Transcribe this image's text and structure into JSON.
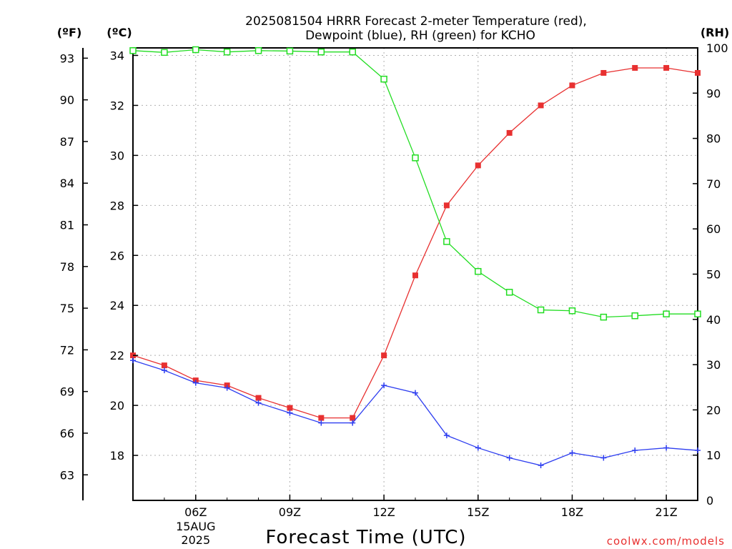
{
  "chart_data": {
    "type": "line",
    "title_line1": "2025081504 HRRR Forecast 2-meter Temperature (red),",
    "title_line2": "Dewpoint (blue), RH (green) for KCHO",
    "xlabel": "Forecast Time (UTC)",
    "credit": "coolwx.com/models",
    "unit_left_f": "(ºF)",
    "unit_left_c": "(ºC)",
    "unit_right": "(RH)",
    "x": [
      4,
      5,
      6,
      7,
      8,
      9,
      10,
      11,
      12,
      13,
      14,
      15,
      16,
      17,
      18,
      19,
      20,
      21,
      22
    ],
    "x_ticks": [
      {
        "x": 6,
        "label": "06Z",
        "sub1": "15AUG",
        "sub2": "2025"
      },
      {
        "x": 9,
        "label": "09Z"
      },
      {
        "x": 12,
        "label": "12Z"
      },
      {
        "x": 15,
        "label": "15Z"
      },
      {
        "x": 18,
        "label": "18Z"
      },
      {
        "x": 21,
        "label": "21Z"
      }
    ],
    "xlim": [
      4,
      22
    ],
    "ylim_c": [
      16.2,
      34.3
    ],
    "y_ticks_c": [
      18,
      20,
      22,
      24,
      26,
      28,
      30,
      32,
      34
    ],
    "y_ticks_f": [
      63,
      66,
      69,
      72,
      75,
      78,
      81,
      84,
      87,
      90,
      93
    ],
    "ylim_rh": [
      0,
      100
    ],
    "y_ticks_rh": [
      0,
      10,
      20,
      30,
      40,
      50,
      60,
      70,
      80,
      90,
      100
    ],
    "grid": true,
    "series": [
      {
        "name": "Temperature",
        "axis": "c",
        "color": "#e83030",
        "marker": "filled-square",
        "values": [
          22.0,
          21.6,
          21.0,
          20.8,
          20.3,
          19.9,
          19.5,
          19.5,
          22.0,
          25.2,
          28.0,
          29.6,
          30.9,
          32.0,
          32.8,
          33.3,
          33.5,
          33.5,
          33.3
        ]
      },
      {
        "name": "Dewpoint",
        "axis": "c",
        "color": "#2e3ef0",
        "marker": "plus",
        "values": [
          21.8,
          21.4,
          20.9,
          20.7,
          20.1,
          19.7,
          19.3,
          19.3,
          20.8,
          20.5,
          18.8,
          18.3,
          17.9,
          17.6,
          18.1,
          17.9,
          18.2,
          18.3,
          18.2
        ]
      },
      {
        "name": "RH",
        "axis": "rh",
        "color": "#22dd22",
        "marker": "open-square",
        "values": [
          99.4,
          99.0,
          99.6,
          99.1,
          99.4,
          99.3,
          99.1,
          99.1,
          93.1,
          75.7,
          57.2,
          50.6,
          46.0,
          42.1,
          41.9,
          40.5,
          40.8,
          41.2,
          41.2
        ]
      }
    ]
  }
}
